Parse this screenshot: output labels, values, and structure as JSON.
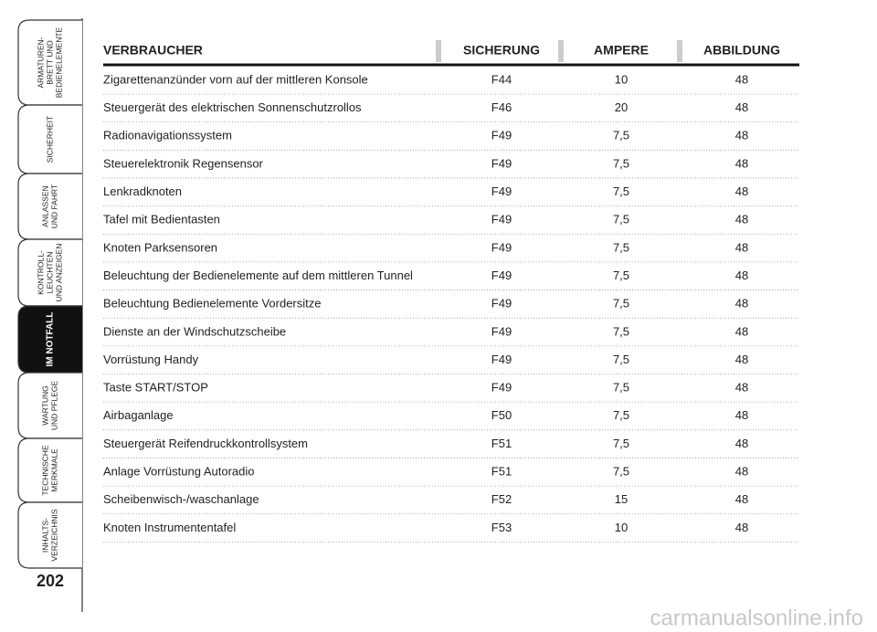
{
  "sidebar": {
    "tabs": [
      {
        "lines": [
          "ARMATUREN-",
          "BRETT UND",
          "BEDIENELEMENTE"
        ]
      },
      {
        "lines": [
          "SICHERHEIT"
        ]
      },
      {
        "lines": [
          "ANLASSEN",
          "UND FAHRT"
        ]
      },
      {
        "lines": [
          "KONTROLL-",
          "LEUCHTEN",
          "UND ANZEIGEN"
        ]
      },
      {
        "lines": [
          "IM NOTFALL"
        ],
        "active": true
      },
      {
        "lines": [
          "WARTUNG",
          "UND PFLEGE"
        ]
      },
      {
        "lines": [
          "TECHNISCHE",
          "MERKMALE"
        ]
      },
      {
        "lines": [
          "INHALTS-",
          "VERZEICHNIS"
        ]
      }
    ],
    "page_number": "202"
  },
  "table": {
    "header": [
      "VERBRAUCHER",
      "SICHERUNG",
      "AMPERE",
      "ABBILDUNG"
    ],
    "rows": [
      [
        "Zigarettenanzünder vorn auf der mittleren Konsole",
        "F44",
        "10",
        "48"
      ],
      [
        "Steuergerät des elektrischen Sonnenschutzrollos",
        "F46",
        "20",
        "48"
      ],
      [
        "Radionavigationssystem",
        "F49",
        "7,5",
        "48"
      ],
      [
        "Steuerelektronik Regensensor",
        "F49",
        "7,5",
        "48"
      ],
      [
        "Lenkradknoten",
        "F49",
        "7,5",
        "48"
      ],
      [
        "Tafel mit Bedientasten",
        "F49",
        "7,5",
        "48"
      ],
      [
        "Knoten Parksensoren",
        "F49",
        "7,5",
        "48"
      ],
      [
        "Beleuchtung der Bedienelemente auf dem mittleren Tunnel",
        "F49",
        "7,5",
        "48"
      ],
      [
        "Beleuchtung Bedienelemente Vordersitze",
        "F49",
        "7,5",
        "48"
      ],
      [
        "Dienste an der Windschutzscheibe",
        "F49",
        "7,5",
        "48"
      ],
      [
        "Vorrüstung Handy",
        "F49",
        "7,5",
        "48"
      ],
      [
        "Taste START/STOP",
        "F49",
        "7,5",
        "48"
      ],
      [
        "Airbaganlage",
        "F50",
        "7,5",
        "48"
      ],
      [
        "Steuergerät Reifendruckkontrollsystem",
        "F51",
        "7,5",
        "48"
      ],
      [
        "Anlage Vorrüstung Autoradio",
        "F51",
        "7,5",
        "48"
      ],
      [
        "Scheibenwisch-/waschanlage",
        "F52",
        "15",
        "48"
      ],
      [
        "Knoten Instrumententafel",
        "F53",
        "10",
        "48"
      ]
    ]
  },
  "watermark": "carmanualsonline.info"
}
